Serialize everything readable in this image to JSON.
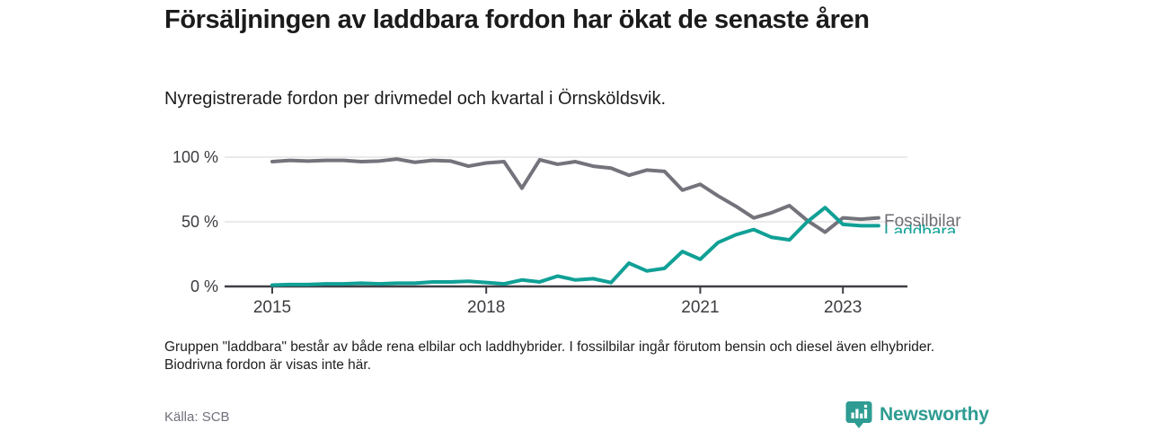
{
  "header": {
    "title": "Försäljningen av laddbara fordon har ökat de senaste åren",
    "subtitle": "Nyregistrerade fordon per drivmedel och kvartal i Örnsköldsvik."
  },
  "chart_data": {
    "type": "line",
    "x_unit": "quarter",
    "categories": [
      "2015 Q1",
      "2015 Q2",
      "2015 Q3",
      "2015 Q4",
      "2016 Q1",
      "2016 Q2",
      "2016 Q3",
      "2016 Q4",
      "2017 Q1",
      "2017 Q2",
      "2017 Q3",
      "2017 Q4",
      "2018 Q1",
      "2018 Q2",
      "2018 Q3",
      "2018 Q4",
      "2019 Q1",
      "2019 Q2",
      "2019 Q3",
      "2019 Q4",
      "2020 Q1",
      "2020 Q2",
      "2020 Q3",
      "2020 Q4",
      "2021 Q1",
      "2021 Q2",
      "2021 Q3",
      "2021 Q4",
      "2022 Q1",
      "2022 Q2",
      "2022 Q3",
      "2022 Q4",
      "2023 Q1",
      "2023 Q2",
      "2023 Q3"
    ],
    "series": [
      {
        "name": "Fossilbilar",
        "color": "#73737b",
        "values": [
          96.5,
          97.5,
          97,
          97.5,
          97.5,
          96.5,
          97,
          98.5,
          96,
          97.5,
          97,
          93,
          95.5,
          96.5,
          76,
          98,
          94.5,
          96.5,
          93,
          91.5,
          86,
          90,
          89,
          74.5,
          79,
          70,
          62,
          53,
          57,
          62.5,
          51,
          42,
          53,
          52,
          53
        ]
      },
      {
        "name": "Laddbara",
        "color": "#10a096",
        "values": [
          1,
          1.5,
          1.5,
          2,
          2,
          2.5,
          2,
          2.5,
          2.5,
          3.5,
          3.5,
          4,
          3,
          2,
          5,
          3.5,
          8,
          5,
          6,
          3,
          18,
          12,
          14,
          27,
          21,
          34,
          40,
          44,
          38,
          36,
          50,
          61,
          48,
          47,
          47
        ]
      }
    ],
    "ylim": [
      0,
      100
    ],
    "y_ticks": [
      {
        "value": 0,
        "label": "0 %"
      },
      {
        "value": 50,
        "label": "50 %"
      },
      {
        "value": 100,
        "label": "100 %"
      }
    ],
    "x_ticks": [
      {
        "year": 2015,
        "label": "2015"
      },
      {
        "year": 2018,
        "label": "2018"
      },
      {
        "year": 2021,
        "label": "2021"
      },
      {
        "year": 2023,
        "label": "2023"
      }
    ],
    "grid": true,
    "legend_position": "right-end-labels",
    "title": "Försäljningen av laddbara fordon har ökat de senaste åren",
    "xlabel": "",
    "ylabel": ""
  },
  "labels": {
    "fossil": "Fossilbilar",
    "laddbara": "Laddbara"
  },
  "footnote": "Gruppen \"laddbara\" består av både rena elbilar och laddhybrider. I fossilbilar ingår förutom bensin och diesel även elhybrider. Biodrivna fordon är visas inte här.",
  "footer": {
    "source": "Källa: SCB",
    "brand": "Newsworthy"
  },
  "colors": {
    "fossil_line": "#73737b",
    "laddbara_line": "#10a096",
    "brand_teal": "#2e9c92",
    "axis": "#3f3f46",
    "grid": "#e3e3e3",
    "tick_text": "#3c3c41"
  }
}
